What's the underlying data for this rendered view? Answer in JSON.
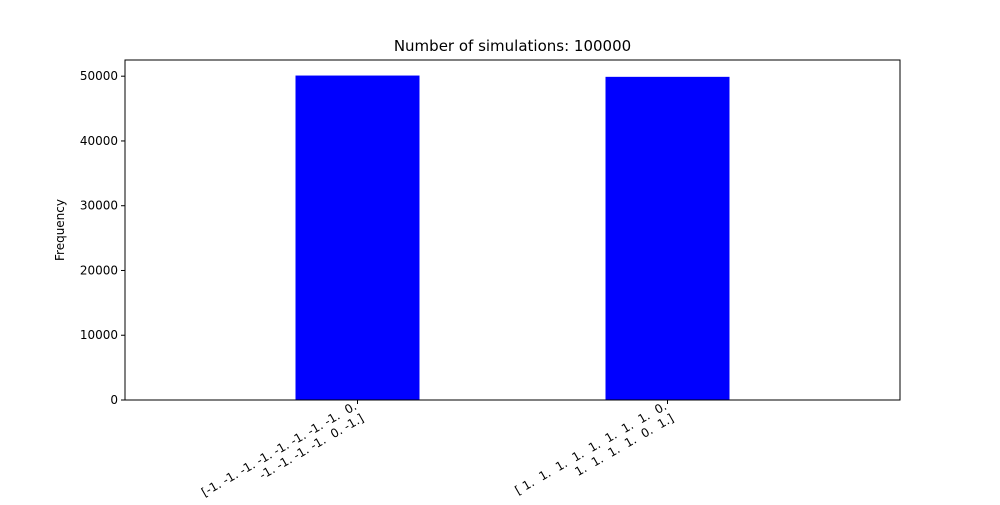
{
  "chart_data": {
    "type": "bar",
    "title": "Number of simulations: 100000",
    "xlabel": "",
    "ylabel": "Frequency",
    "categories": [
      [
        "[-1. -1. -1. -1. -1. -1. -1. -1.  0.",
        " -1. -1. -1. -1.  0. -1.]"
      ],
      [
        "[ 1.  1.  1.  1.  1.  1.  1.  1.  0.",
        "  1.  1.  1.  1.  0.  1.]"
      ]
    ],
    "values": [
      50100,
      49900
    ],
    "ylim": [
      0,
      52500
    ],
    "yticks": [
      0,
      10000,
      20000,
      30000,
      40000,
      50000
    ],
    "ytick_labels": [
      "0",
      "10000",
      "20000",
      "30000",
      "40000",
      "50000"
    ],
    "bar_color": "#0000ff",
    "grid": false,
    "legend": "none"
  }
}
